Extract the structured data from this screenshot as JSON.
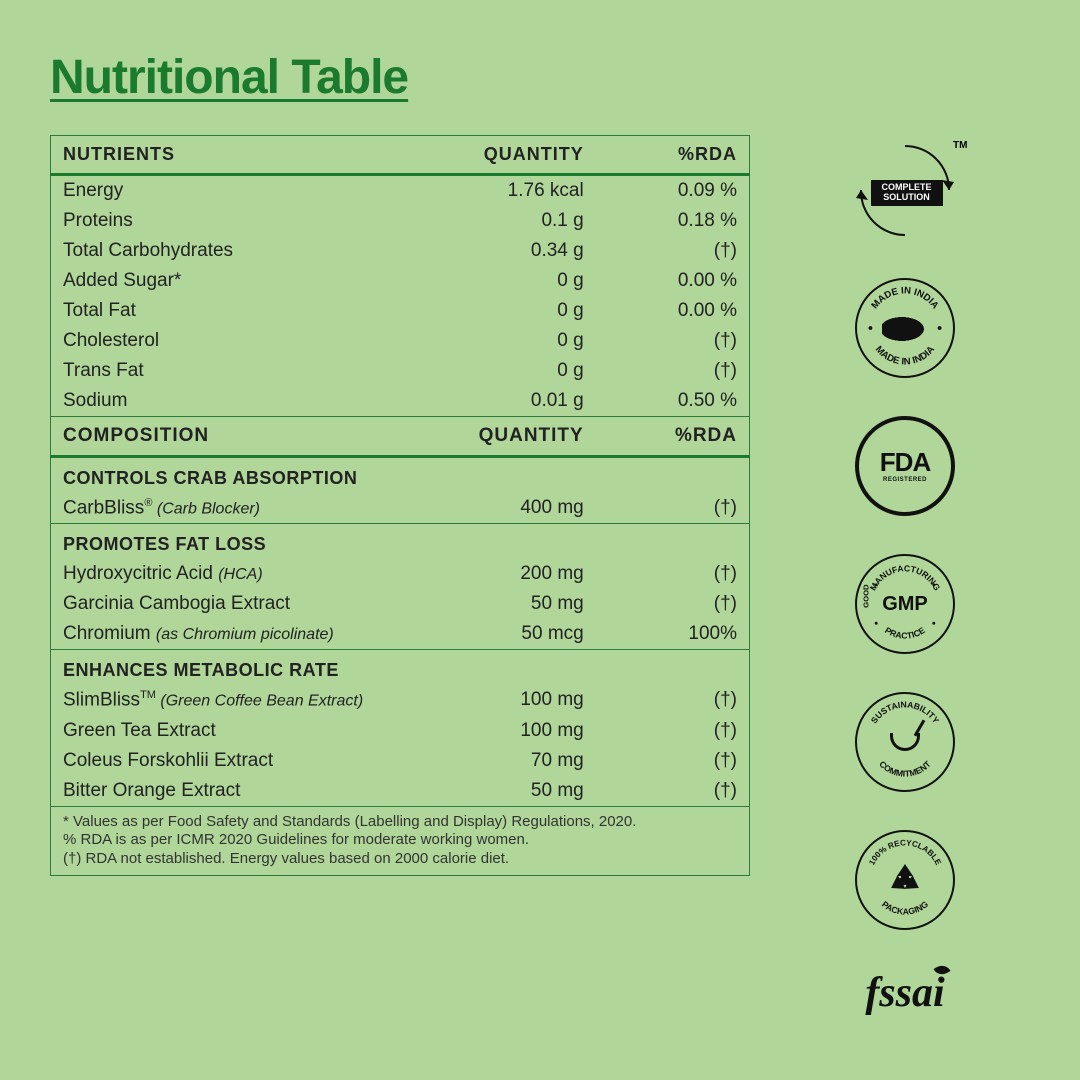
{
  "title": "Nutritional Table",
  "colors": {
    "background": "#b0d699",
    "accent": "#1a7a2e",
    "border": "#2a7a3a",
    "text": "#222222"
  },
  "headers": {
    "n": "NUTRIENTS",
    "q": "QUANTITY",
    "r": "%RDA"
  },
  "headers2": {
    "n": "COMPOSITION",
    "q": "QUANTITY",
    "r": "%RDA"
  },
  "nutrients": [
    {
      "name": "Energy",
      "qty": "1.76 kcal",
      "rda": "0.09 %"
    },
    {
      "name": "Proteins",
      "qty": "0.1 g",
      "rda": "0.18 %"
    },
    {
      "name": "Total Carbohydrates",
      "qty": "0.34 g",
      "rda": "(†)"
    },
    {
      "name": "Added Sugar*",
      "qty": "0 g",
      "rda": "0.00 %"
    },
    {
      "name": "Total Fat",
      "qty": "0 g",
      "rda": "0.00 %"
    },
    {
      "name": "Cholesterol",
      "qty": "0 g",
      "rda": "(†)"
    },
    {
      "name": "Trans Fat",
      "qty": "0 g",
      "rda": "(†)"
    },
    {
      "name": "Sodium",
      "qty": "0.01 g",
      "rda": "0.50 %"
    }
  ],
  "sections": [
    {
      "title": "CONTROLS CRAB ABSORPTION",
      "rows": [
        {
          "name": "CarbBliss",
          "mark": "®",
          "desc": " (Carb Blocker)",
          "qty": "400 mg",
          "rda": "(†)"
        }
      ]
    },
    {
      "title": "PROMOTES FAT LOSS",
      "rows": [
        {
          "name": "Hydroxycitric Acid ",
          "desc": "(HCA)",
          "qty": "200 mg",
          "rda": "(†)"
        },
        {
          "name": "Garcinia Cambogia Extract",
          "qty": "50 mg",
          "rda": "(†)"
        },
        {
          "name": "Chromium ",
          "desc": "(as Chromium picolinate)",
          "qty": "50 mcg",
          "rda": "100%"
        }
      ]
    },
    {
      "title": "ENHANCES METABOLIC RATE",
      "rows": [
        {
          "name": "SlimBliss",
          "mark": "TM",
          "desc": " (Green Coffee Bean Extract)",
          "qty": "100 mg",
          "rda": "(†)"
        },
        {
          "name": "Green Tea Extract",
          "qty": "100 mg",
          "rda": "(†)"
        },
        {
          "name": "Coleus Forskohlii Extract",
          "qty": "70 mg",
          "rda": "(†)"
        },
        {
          "name": "Bitter Orange Extract",
          "qty": "50 mg",
          "rda": "(†)"
        }
      ]
    }
  ],
  "footnotes": [
    "* Values as per Food Safety and Standards (Labelling and Display) Regulations, 2020.",
    "% RDA is as per ICMR 2020 Guidelines for moderate working women.",
    "(†) RDA not established. Energy values based on 2000 calorie diet."
  ],
  "badges": {
    "complete": {
      "l1": "COMPLETE",
      "l2": "SOLUTION",
      "tm": "TM"
    },
    "india": {
      "top": "MADE IN INDIA",
      "bottom": "MADE IN INDIA"
    },
    "fda": {
      "main": "FDA",
      "sub": "REGISTERED"
    },
    "gmp": {
      "center": "GMP",
      "top": "MANUFACTURING",
      "left": "GOOD",
      "bottom": "PRACTICE"
    },
    "sustain": {
      "top": "SUSTAINABILITY",
      "bottom": "COMMITMENT"
    },
    "recycle": {
      "top": "100% RECYCLABLE",
      "bottom": "PACKAGING"
    },
    "fssai": "fssai"
  }
}
